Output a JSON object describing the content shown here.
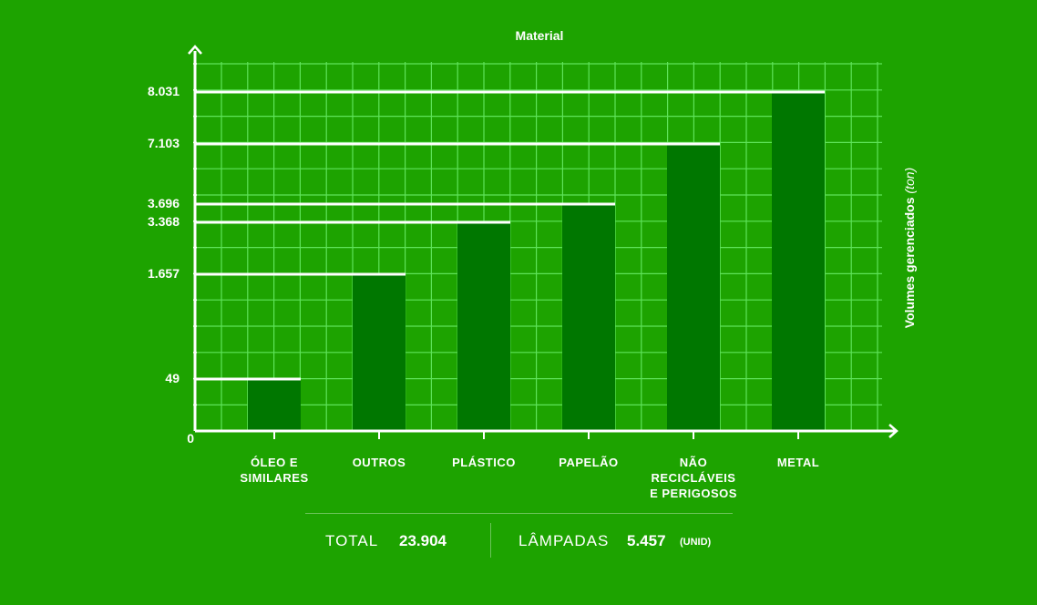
{
  "chart_data": {
    "type": "bar",
    "title": "Material",
    "ylabel": "Volumes gerenciados",
    "yunit": "(ton)",
    "origin_label": "0",
    "ylim": [
      0,
      8031
    ],
    "grid": true,
    "categories": [
      "ÓLEO E\nSIMILARES",
      "OUTROS",
      "PLÁSTICO",
      "PAPELÃO",
      "NÃO\nRECICLÁVEIS\nE PERIGOSOS",
      "METAL"
    ],
    "values": [
      49,
      1657,
      3368,
      3696,
      7103,
      8031
    ],
    "value_labels": [
      "49",
      "1.657",
      "3.368",
      "3.696",
      "7.103",
      "8.031"
    ],
    "colors": {
      "background": "#1da300",
      "bar": "#007700",
      "grid": "#5fe35a",
      "axis": "#ffffff"
    }
  },
  "summary": {
    "total_label": "TOTAL",
    "total_value": "23.904",
    "lamps_label": "LÂMPADAS",
    "lamps_value": "5.457",
    "lamps_unit": "(UNID)"
  }
}
